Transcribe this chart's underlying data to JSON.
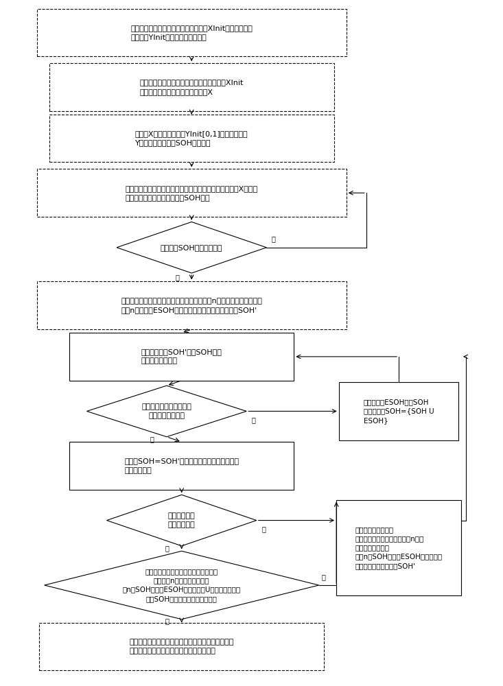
{
  "bg_color": "#ffffff",
  "font_size": 8,
  "small_font_size": 7.5,
  "label_font_size": 7,
  "step1_text": "一、择锂离子电池放电的电压测量数据XInit与对应的电池\n容量数据YInit，构成训练数据集合",
  "step2_text": "二、将原始训练数据中放电的电压测量数据XInit\n通过采样熵方法进行特征提取得到X",
  "step3_text": "三、以X为输出向量，以YInit[0,1]归一化得到的\nY作为输出向量进行SOH指数建模",
  "step4_text": "四、将测试集放电电压测量数据进行采样熵特征提取得到X输入上\n述高斯回归模型计算得到已知SOH指数",
  "step5_text": "五、判断SOH建立是否完成",
  "step6_text": "六、根据步骤三得到的高斯过程回归模型进行n步短期时间序列预测，\n得到n个预测值ESOH，按照滚动时间窗方式得到新的SOH'",
  "step7_text": "七、对新序列SOH'与原SOH序列\n进行相关系数计算",
  "step8_text": "八、根据相关性计算结果\n判断是否大于阈值",
  "step8no_text": "将步骤六的ESOH加入SOH\n序列中，即SOH={SOH U\nESOH}",
  "step9_text": "九、将SOH=SOH'作为输入数据集合用高斯过程\n回归进行预测",
  "step10_text": "十、输入集合\n预测是否完成",
  "step11_text": "十一、根据步骤九得到的高斯过程回归\n模型进行n步时间序列预测，\n将n个SOH预测值ESOH与失效阈值U分别进行比较，\n判断SOH预测值是否小于失效阈值",
  "step12_text": "十二、根据步骤十一\n得到的高斯过程回归模型进行n步短\n期时间序列预测，\n得到n个SOH预测值ESOH，并按照滚\n动时间窗方式得到新的SOH'",
  "step13_text": "十三、停止预测，停止预测时的容量所对应的充放电\n循环次数，即为锂离子电池剩余寿命预测值"
}
